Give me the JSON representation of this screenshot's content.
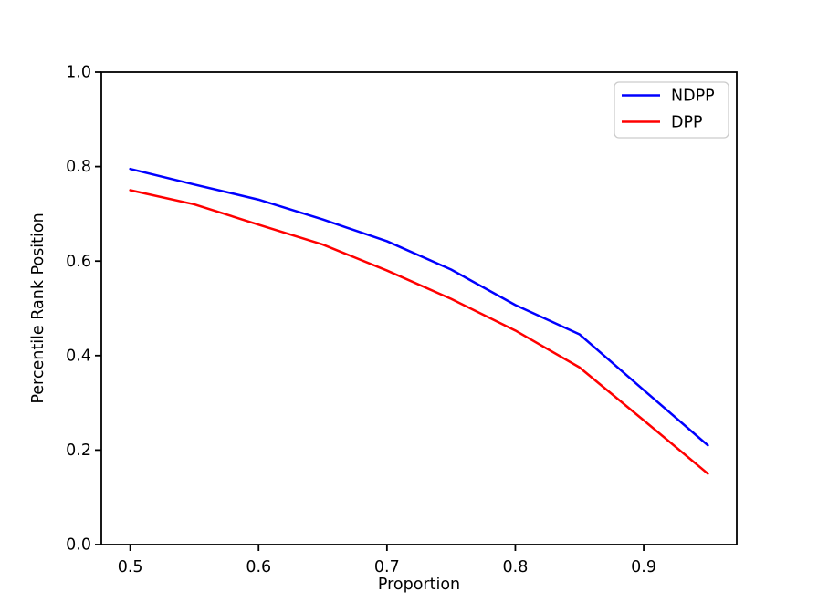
{
  "figure": {
    "background": "#ffffff"
  },
  "chart_data": {
    "type": "line",
    "title": "",
    "xlabel": "Proportion",
    "ylabel": "Percentile Rank Position",
    "x": [
      0.5,
      0.55,
      0.6,
      0.65,
      0.7,
      0.75,
      0.8,
      0.85,
      0.9,
      0.95
    ],
    "series": [
      {
        "name": "NDPP",
        "color": "#0000ff",
        "values": [
          0.795,
          0.762,
          0.73,
          0.688,
          0.642,
          0.582,
          0.507,
          0.445,
          0.327,
          0.21
        ]
      },
      {
        "name": "DPP",
        "color": "#ff0000",
        "values": [
          0.75,
          0.72,
          0.677,
          0.635,
          0.58,
          0.52,
          0.453,
          0.375,
          0.263,
          0.15
        ]
      }
    ],
    "xlim": [
      0.4775,
      0.9725
    ],
    "ylim": [
      0.0,
      1.0
    ],
    "xticks": {
      "values": [
        0.5,
        0.6,
        0.7,
        0.8,
        0.9
      ],
      "labels": [
        "0.5",
        "0.6",
        "0.7",
        "0.8",
        "0.9"
      ]
    },
    "yticks": {
      "values": [
        0.0,
        0.2,
        0.4,
        0.6,
        0.8,
        1.0
      ],
      "labels": [
        "0.0",
        "0.2",
        "0.4",
        "0.6",
        "0.8",
        "1.0"
      ]
    },
    "grid": false,
    "legend": {
      "position": "upper right",
      "entries": [
        "NDPP",
        "DPP"
      ]
    },
    "axis_color": "#000000",
    "line_width": 2.5
  }
}
